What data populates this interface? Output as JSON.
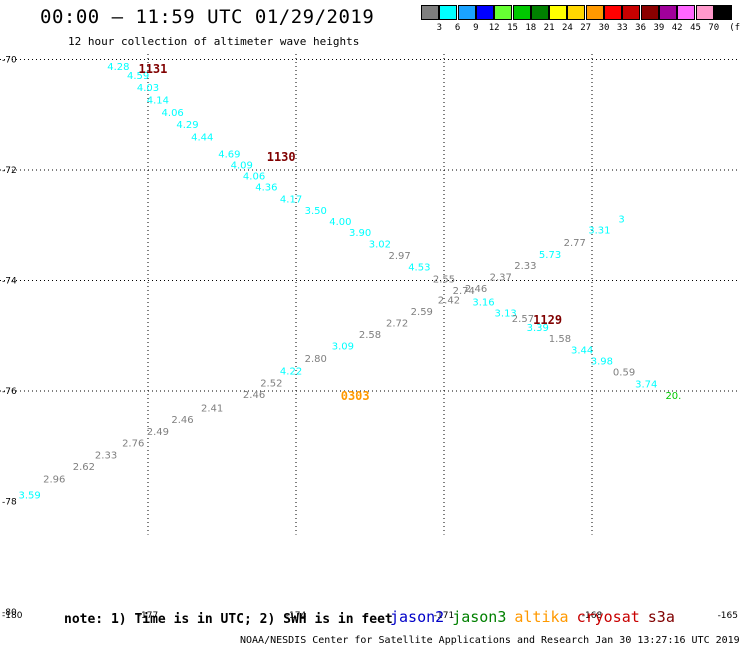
{
  "header": {
    "title": "00:00 – 11:59 UTC 01/29/2019",
    "subtitle": "12 hour collection of altimeter wave heights"
  },
  "colorbar": {
    "labels": [
      "3",
      "6",
      "9",
      "12",
      "15",
      "18",
      "21",
      "24",
      "27",
      "30",
      "33",
      "36",
      "39",
      "42",
      "45",
      "70"
    ],
    "unit": "(ft)",
    "colors": [
      "#7f7f7f",
      "#00ffff",
      "#1aa3ff",
      "#0000ff",
      "#66ff33",
      "#00c800",
      "#008000",
      "#ffff00",
      "#ffd700",
      "#ff9900",
      "#ff0000",
      "#c80000",
      "#8b0000",
      "#a0009b",
      "#ff66ff",
      "#ff99cc",
      "#000000"
    ]
  },
  "chart_data": {
    "type": "scatter",
    "x_axis_labels": [
      "-180",
      "-177",
      "-174",
      "-171",
      "-168",
      "-165"
    ],
    "y_axis_labels": [
      "-70",
      "-72",
      "-74",
      "-76",
      "-78",
      "-80"
    ],
    "xlim": [
      -180,
      -165
    ],
    "ylim": [
      -80,
      -69.9
    ],
    "grid": true,
    "wave_heights": [
      {
        "lon": -177.6,
        "lat": -70.12,
        "text": "4.28",
        "color": "#00ffff"
      },
      {
        "lon": -177.2,
        "lat": -70.28,
        "text": "4.59",
        "color": "#00ffff"
      },
      {
        "lon": -177.0,
        "lat": -70.5,
        "text": "4.03",
        "color": "#00ffff"
      },
      {
        "lon": -176.8,
        "lat": -70.72,
        "text": "4.14",
        "color": "#00ffff"
      },
      {
        "lon": -176.5,
        "lat": -70.95,
        "text": "4.06",
        "color": "#00ffff"
      },
      {
        "lon": -176.2,
        "lat": -71.17,
        "text": "4.29",
        "color": "#00ffff"
      },
      {
        "lon": -175.9,
        "lat": -71.39,
        "text": "4.44",
        "color": "#00ffff"
      },
      {
        "lon": -175.35,
        "lat": -71.7,
        "text": "4.69",
        "color": "#00ffff"
      },
      {
        "lon": -175.1,
        "lat": -71.9,
        "text": "4.09",
        "color": "#00ffff"
      },
      {
        "lon": -174.85,
        "lat": -72.1,
        "text": "4.06",
        "color": "#00ffff"
      },
      {
        "lon": -174.6,
        "lat": -72.3,
        "text": "4.36",
        "color": "#00ffff"
      },
      {
        "lon": -174.1,
        "lat": -72.52,
        "text": "4.17",
        "color": "#00ffff"
      },
      {
        "lon": -173.6,
        "lat": -72.72,
        "text": "3.50",
        "color": "#00ffff"
      },
      {
        "lon": -173.1,
        "lat": -72.92,
        "text": "4.00",
        "color": "#00ffff"
      },
      {
        "lon": -172.7,
        "lat": -73.12,
        "text": "3.90",
        "color": "#00ffff"
      },
      {
        "lon": -172.3,
        "lat": -73.33,
        "text": "3.02",
        "color": "#00ffff"
      },
      {
        "lon": -171.9,
        "lat": -73.54,
        "text": "2.97",
        "color": "#7f7f7f"
      },
      {
        "lon": -171.5,
        "lat": -73.75,
        "text": "4.53",
        "color": "#00ffff"
      },
      {
        "lon": -171.0,
        "lat": -73.96,
        "text": "2.55",
        "color": "#7f7f7f"
      },
      {
        "lon": -170.6,
        "lat": -74.17,
        "text": "2.74",
        "color": "#7f7f7f"
      },
      {
        "lon": -170.2,
        "lat": -74.38,
        "text": "3.16",
        "color": "#00ffff"
      },
      {
        "lon": -169.75,
        "lat": -74.58,
        "text": "3.13",
        "color": "#00ffff"
      },
      {
        "lon": -169.4,
        "lat": -74.68,
        "text": "2.57",
        "color": "#7f7f7f"
      },
      {
        "lon": -169.1,
        "lat": -74.84,
        "text": "3.39",
        "color": "#00ffff"
      },
      {
        "lon": -168.65,
        "lat": -75.04,
        "text": "1.58",
        "color": "#7f7f7f"
      },
      {
        "lon": -168.2,
        "lat": -75.25,
        "text": "3.44",
        "color": "#00ffff"
      },
      {
        "lon": -167.8,
        "lat": -75.45,
        "text": "3.98",
        "color": "#00ffff"
      },
      {
        "lon": -167.35,
        "lat": -75.65,
        "text": "0.59",
        "color": "#7f7f7f"
      },
      {
        "lon": -166.9,
        "lat": -75.86,
        "text": "3.74",
        "color": "#00ffff"
      },
      {
        "lon": -166.35,
        "lat": -76.07,
        "text": "20.",
        "color": "#00c800"
      },
      {
        "lon": -179.4,
        "lat": -77.87,
        "text": "3.59",
        "color": "#00ffff"
      },
      {
        "lon": -178.9,
        "lat": -77.58,
        "text": "2.96",
        "color": "#7f7f7f"
      },
      {
        "lon": -178.3,
        "lat": -77.36,
        "text": "2.62",
        "color": "#7f7f7f"
      },
      {
        "lon": -177.85,
        "lat": -77.15,
        "text": "2.33",
        "color": "#7f7f7f"
      },
      {
        "lon": -177.3,
        "lat": -76.93,
        "text": "2.76",
        "color": "#7f7f7f"
      },
      {
        "lon": -176.8,
        "lat": -76.72,
        "text": "2.49",
        "color": "#7f7f7f"
      },
      {
        "lon": -176.3,
        "lat": -76.51,
        "text": "2.46",
        "color": "#7f7f7f"
      },
      {
        "lon": -175.7,
        "lat": -76.3,
        "text": "2.41",
        "color": "#7f7f7f"
      },
      {
        "lon": -174.85,
        "lat": -76.05,
        "text": "2.46",
        "color": "#7f7f7f"
      },
      {
        "lon": -174.5,
        "lat": -75.85,
        "text": "2.52",
        "color": "#7f7f7f"
      },
      {
        "lon": -174.1,
        "lat": -75.63,
        "text": "4.22",
        "color": "#00ffff"
      },
      {
        "lon": -173.6,
        "lat": -75.4,
        "text": "2.80",
        "color": "#7f7f7f"
      },
      {
        "lon": -173.05,
        "lat": -75.18,
        "text": "3.09",
        "color": "#00ffff"
      },
      {
        "lon": -172.5,
        "lat": -74.97,
        "text": "2.58",
        "color": "#7f7f7f"
      },
      {
        "lon": -171.95,
        "lat": -74.76,
        "text": "2.72",
        "color": "#7f7f7f"
      },
      {
        "lon": -171.45,
        "lat": -74.55,
        "text": "2.59",
        "color": "#7f7f7f"
      },
      {
        "lon": -170.9,
        "lat": -74.34,
        "text": "2.42",
        "color": "#7f7f7f"
      },
      {
        "lon": -170.35,
        "lat": -74.14,
        "text": "2.46",
        "color": "#7f7f7f"
      },
      {
        "lon": -169.85,
        "lat": -73.93,
        "text": "2.37",
        "color": "#7f7f7f"
      },
      {
        "lon": -169.35,
        "lat": -73.72,
        "text": "2.33",
        "color": "#7f7f7f"
      },
      {
        "lon": -168.85,
        "lat": -73.52,
        "text": "5.73",
        "color": "#00ffff"
      },
      {
        "lon": -168.35,
        "lat": -73.3,
        "text": "2.77",
        "color": "#7f7f7f"
      },
      {
        "lon": -167.85,
        "lat": -73.08,
        "text": "3.31",
        "color": "#00ffff"
      },
      {
        "lon": -167.4,
        "lat": -72.88,
        "text": "3",
        "color": "#00ffff"
      }
    ],
    "pass_times": [
      {
        "lon": -176.9,
        "lat": -70.15,
        "text": "1131",
        "color": "#800000"
      },
      {
        "lon": -174.3,
        "lat": -71.75,
        "text": "1130",
        "color": "#800000"
      },
      {
        "lon": -168.9,
        "lat": -74.7,
        "text": "1129",
        "color": "#800000"
      },
      {
        "lon": -172.8,
        "lat": -76.07,
        "text": "0303",
        "color": "#ff9900"
      }
    ]
  },
  "footer": {
    "note": "note: 1) Time is in UTC; 2) SWH is in feet",
    "credit": "NOAA/NESDIS Center for Satellite Applications and Research    Jan 30 13:27:16 UTC 2019",
    "missions": [
      {
        "name": "jason2",
        "color": "#0000c8"
      },
      {
        "name": "jason3",
        "color": "#008000"
      },
      {
        "name": "altika",
        "color": "#ff9900"
      },
      {
        "name": "cryosat",
        "color": "#c80000"
      },
      {
        "name": "s3a",
        "color": "#800000"
      }
    ]
  }
}
